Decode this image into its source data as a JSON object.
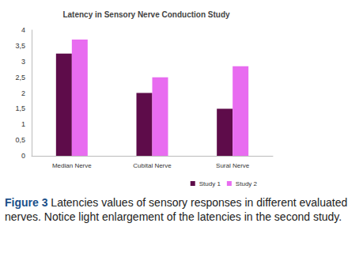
{
  "chart_data": {
    "type": "bar",
    "title": "Latency in Sensory Nerve Conduction Study",
    "categories": [
      "Median Nerve",
      "Cubital Nerve",
      "Sural Nerve"
    ],
    "series": [
      {
        "name": "Study 1",
        "color": "#5e0c4a",
        "values": [
          3.25,
          2.0,
          1.5
        ]
      },
      {
        "name": "Study 2",
        "color": "#e86cf0",
        "values": [
          3.7,
          2.5,
          2.85
        ]
      }
    ],
    "ylim": [
      0,
      4
    ],
    "yticks": [
      0,
      {
        "value": 0.5,
        "label": "0,5"
      },
      1,
      {
        "value": 1.5,
        "label": "1,5"
      },
      2,
      {
        "value": 2.5,
        "label": "2,5"
      },
      3,
      {
        "value": 3.5,
        "label": "3,5"
      },
      4
    ],
    "grid": false,
    "legend": "bottom"
  },
  "caption": {
    "label": "Figure 3",
    "text": "Latencies values of sensory responses in different evaluated nerves. Notice light enlargement of the latencies in the second study."
  }
}
